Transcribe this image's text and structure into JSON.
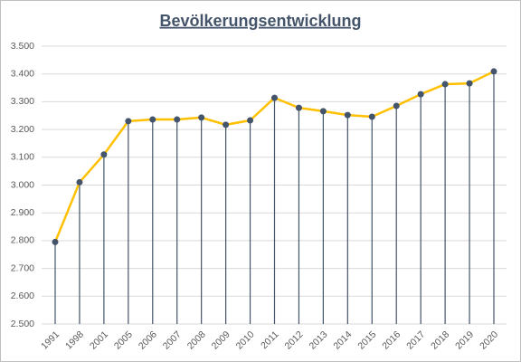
{
  "chart_data": {
    "type": "line",
    "title": "Bevölkerungsentwicklung",
    "categories": [
      "1991",
      "1998",
      "2001",
      "2005",
      "2006",
      "2007",
      "2008",
      "2009",
      "2010",
      "2011",
      "2012",
      "2013",
      "2014",
      "2015",
      "2016",
      "2017",
      "2018",
      "2019",
      "2020"
    ],
    "values": [
      2795,
      3010,
      3110,
      3230,
      3236,
      3236,
      3243,
      3217,
      3233,
      3314,
      3278,
      3266,
      3252,
      3246,
      3285,
      3327,
      3363,
      3366,
      3409
    ],
    "color": "#ffc000",
    "marker_color": "#44546a",
    "drop_lines": true,
    "ylim": [
      2500,
      3500
    ],
    "yticks": [
      {
        "value": 2500,
        "label": "2.500"
      },
      {
        "value": 2600,
        "label": "2.600"
      },
      {
        "value": 2700,
        "label": "2.700"
      },
      {
        "value": 2800,
        "label": "2.800"
      },
      {
        "value": 2900,
        "label": "2.900"
      },
      {
        "value": 3000,
        "label": "3.000"
      },
      {
        "value": 3100,
        "label": "3.100"
      },
      {
        "value": 3200,
        "label": "3.200"
      },
      {
        "value": 3300,
        "label": "3.300"
      },
      {
        "value": 3400,
        "label": "3.400"
      },
      {
        "value": 3500,
        "label": "3.500"
      }
    ],
    "grid": true
  }
}
